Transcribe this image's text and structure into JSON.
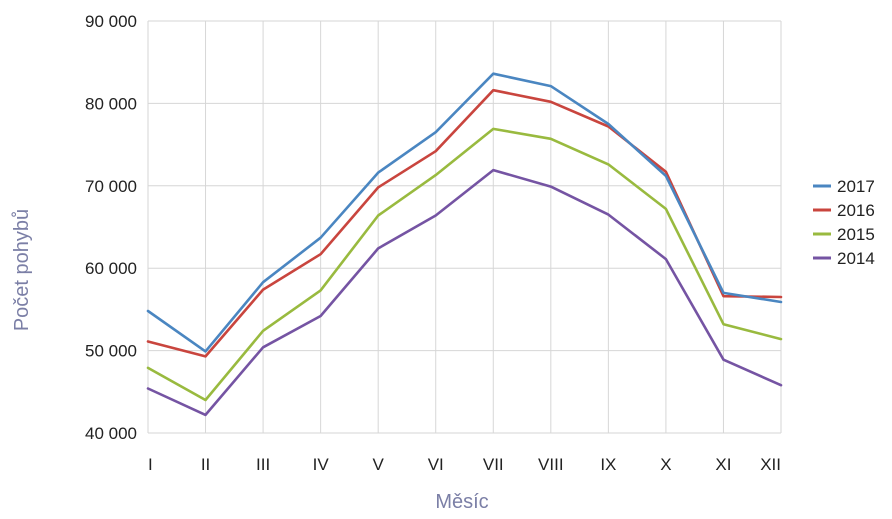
{
  "chart_data": {
    "type": "line",
    "title": "",
    "xlabel": "Měsíc",
    "ylabel": "Počet pohybů",
    "categories": [
      "I",
      "II",
      "III",
      "IV",
      "V",
      "VI",
      "VII",
      "VIII",
      "IX",
      "X",
      "XI",
      "XII"
    ],
    "ylim": [
      40000,
      90000
    ],
    "yticks": [
      40000,
      50000,
      60000,
      70000,
      80000,
      90000
    ],
    "ytick_labels": [
      "40 000",
      "50 000",
      "60 000",
      "70 000",
      "80 000",
      "90 000"
    ],
    "grid": true,
    "legend_position": "right",
    "series": [
      {
        "name": "2017",
        "color": "#4a86c1",
        "values": [
          54800,
          49900,
          58300,
          63700,
          71600,
          76500,
          83600,
          82100,
          77500,
          71200,
          57000,
          55900
        ]
      },
      {
        "name": "2016",
        "color": "#c9453e",
        "values": [
          51100,
          49300,
          57400,
          61700,
          69800,
          74200,
          81600,
          80200,
          77200,
          71700,
          56600,
          56500
        ]
      },
      {
        "name": "2015",
        "color": "#99ba3f",
        "values": [
          47900,
          44000,
          52400,
          57300,
          66400,
          71300,
          76900,
          75700,
          72600,
          67200,
          53200,
          51400
        ]
      },
      {
        "name": "2014",
        "color": "#7554a3",
        "values": [
          45400,
          42200,
          50400,
          54200,
          62400,
          66400,
          71900,
          69900,
          66500,
          61100,
          48900,
          45800
        ]
      }
    ]
  }
}
